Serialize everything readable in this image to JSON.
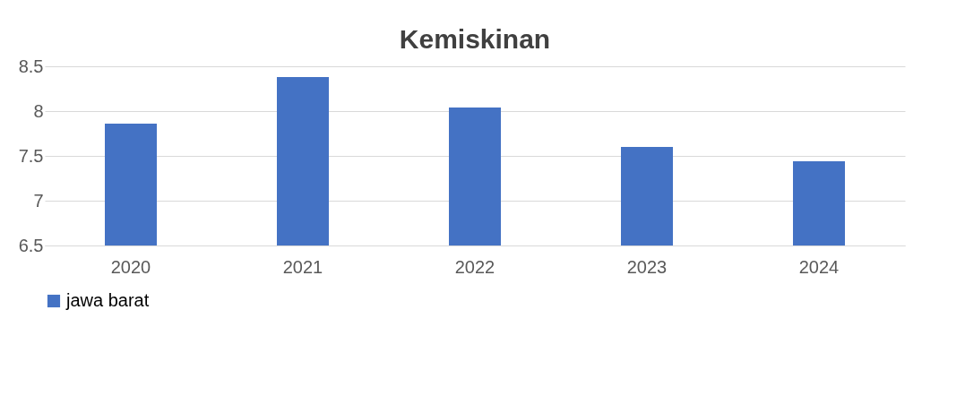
{
  "chart_data": {
    "type": "bar",
    "title": "Kemiskinan",
    "categories": [
      "2020",
      "2021",
      "2022",
      "2023",
      "2024"
    ],
    "series": [
      {
        "name": "jawa barat",
        "color": "#4472c4",
        "values": [
          7.86,
          8.38,
          8.04,
          7.6,
          7.44
        ]
      }
    ],
    "ylim": [
      6.5,
      8.5
    ],
    "yticks": [
      6.5,
      7,
      7.5,
      8,
      8.5
    ],
    "grid": "y",
    "legend": "bottom"
  }
}
